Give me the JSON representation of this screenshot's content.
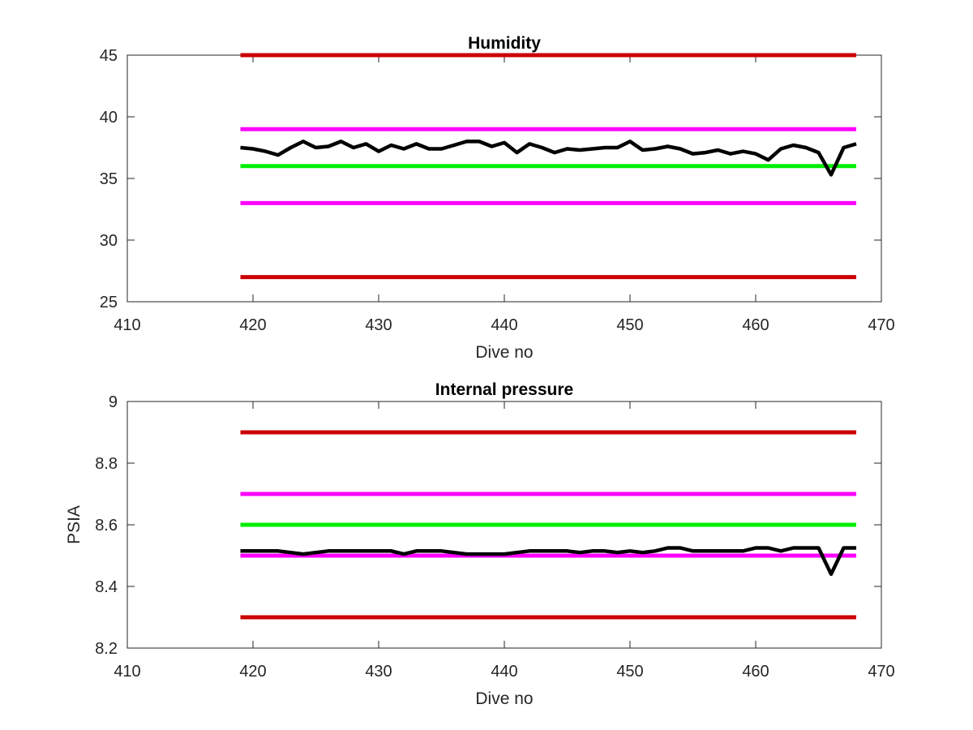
{
  "chart_data": [
    {
      "type": "line",
      "title": "Humidity",
      "xlabel": "Dive no",
      "ylabel": "",
      "xlim": [
        410,
        470
      ],
      "ylim": [
        25,
        45
      ],
      "xticks": [
        410,
        420,
        430,
        440,
        450,
        460,
        470
      ],
      "yticks": [
        25,
        30,
        35,
        40,
        45
      ],
      "grid": false,
      "series": [
        {
          "role": "threshold",
          "color": "#cc0000",
          "x": [
            419,
            468
          ],
          "y": [
            45,
            45
          ]
        },
        {
          "role": "threshold",
          "color": "#ff00ff",
          "x": [
            419,
            468
          ],
          "y": [
            39,
            39
          ]
        },
        {
          "role": "threshold",
          "color": "#00ee00",
          "x": [
            419,
            468
          ],
          "y": [
            36,
            36
          ]
        },
        {
          "role": "threshold",
          "color": "#ff00ff",
          "x": [
            419,
            468
          ],
          "y": [
            33,
            33
          ]
        },
        {
          "role": "threshold",
          "color": "#cc0000",
          "x": [
            419,
            468
          ],
          "y": [
            27,
            27
          ]
        },
        {
          "role": "measurement",
          "color": "#000000",
          "x": [
            419,
            420,
            421,
            422,
            423,
            424,
            425,
            426,
            427,
            428,
            429,
            430,
            431,
            432,
            433,
            434,
            435,
            436,
            437,
            438,
            439,
            440,
            441,
            442,
            443,
            444,
            445,
            446,
            447,
            448,
            449,
            450,
            451,
            452,
            453,
            454,
            455,
            456,
            457,
            458,
            459,
            460,
            461,
            462,
            463,
            464,
            465,
            466,
            467,
            468
          ],
          "y": [
            37.5,
            37.4,
            37.2,
            36.9,
            37.5,
            38.0,
            37.5,
            37.6,
            38.0,
            37.5,
            37.8,
            37.2,
            37.7,
            37.4,
            37.8,
            37.4,
            37.4,
            37.7,
            38.0,
            38.0,
            37.6,
            37.9,
            37.1,
            37.8,
            37.5,
            37.1,
            37.4,
            37.3,
            37.4,
            37.5,
            37.5,
            38.0,
            37.3,
            37.4,
            37.6,
            37.4,
            37.0,
            37.1,
            37.3,
            37.0,
            37.2,
            37.0,
            36.5,
            37.4,
            37.7,
            37.5,
            37.1,
            35.3,
            37.5,
            37.8
          ]
        }
      ]
    },
    {
      "type": "line",
      "title": "Internal pressure",
      "xlabel": "Dive no",
      "ylabel": "PSIA",
      "xlim": [
        410,
        470
      ],
      "ylim": [
        8.2,
        9
      ],
      "xticks": [
        410,
        420,
        430,
        440,
        450,
        460,
        470
      ],
      "yticks": [
        8.2,
        8.4,
        8.6,
        8.8,
        9
      ],
      "grid": false,
      "series": [
        {
          "role": "threshold",
          "color": "#cc0000",
          "x": [
            419,
            468
          ],
          "y": [
            8.9,
            8.9
          ]
        },
        {
          "role": "threshold",
          "color": "#ff00ff",
          "x": [
            419,
            468
          ],
          "y": [
            8.7,
            8.7
          ]
        },
        {
          "role": "threshold",
          "color": "#00ee00",
          "x": [
            419,
            468
          ],
          "y": [
            8.6,
            8.6
          ]
        },
        {
          "role": "threshold",
          "color": "#ff00ff",
          "x": [
            419,
            468
          ],
          "y": [
            8.5,
            8.5
          ]
        },
        {
          "role": "threshold",
          "color": "#cc0000",
          "x": [
            419,
            468
          ],
          "y": [
            8.3,
            8.3
          ]
        },
        {
          "role": "measurement",
          "color": "#000000",
          "x": [
            419,
            420,
            421,
            422,
            423,
            424,
            425,
            426,
            427,
            428,
            429,
            430,
            431,
            432,
            433,
            434,
            435,
            436,
            437,
            438,
            439,
            440,
            441,
            442,
            443,
            444,
            445,
            446,
            447,
            448,
            449,
            450,
            451,
            452,
            453,
            454,
            455,
            456,
            457,
            458,
            459,
            460,
            461,
            462,
            463,
            464,
            465,
            466,
            467,
            468
          ],
          "y": [
            8.515,
            8.515,
            8.515,
            8.515,
            8.51,
            8.505,
            8.51,
            8.515,
            8.515,
            8.515,
            8.515,
            8.515,
            8.515,
            8.505,
            8.515,
            8.515,
            8.515,
            8.51,
            8.505,
            8.505,
            8.505,
            8.505,
            8.51,
            8.515,
            8.515,
            8.515,
            8.515,
            8.51,
            8.515,
            8.515,
            8.51,
            8.515,
            8.51,
            8.515,
            8.525,
            8.525,
            8.515,
            8.515,
            8.515,
            8.515,
            8.515,
            8.525,
            8.525,
            8.515,
            8.525,
            8.525,
            8.525,
            8.44,
            8.525,
            8.525
          ]
        }
      ]
    }
  ]
}
